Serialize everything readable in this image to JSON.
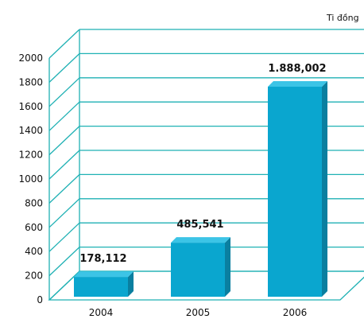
{
  "chart_data": {
    "type": "bar",
    "unit_label": "Ti đồng",
    "categories": [
      "2004",
      "2005",
      "2006"
    ],
    "values": [
      178.112,
      485.541,
      1888.002
    ],
    "data_labels": [
      "178,112",
      "485,541",
      "1.888,002"
    ],
    "ylim": [
      0,
      2000
    ],
    "yticks": [
      0,
      200,
      400,
      600,
      800,
      1000,
      1200,
      1400,
      1600,
      1800,
      2000
    ],
    "grid": true,
    "three_d": true,
    "colors": {
      "bar_front": "#0aa6cf",
      "bar_side": "#0a7fa0",
      "bar_top": "#3cc4e6",
      "grid": "#1fb1b4"
    }
  }
}
